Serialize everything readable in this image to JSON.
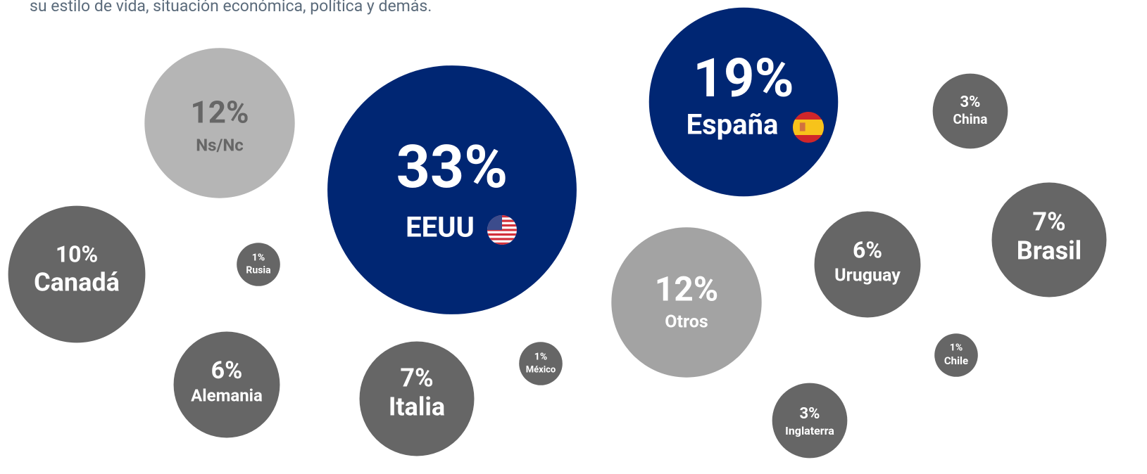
{
  "chart_data": {
    "type": "bubble",
    "subtitle": "su estilo de vida, situación económica, política y demás.",
    "categories": [
      "EEUU",
      "España",
      "Ns/Nc",
      "Otros",
      "Canadá",
      "Brasil",
      "Italia",
      "Alemania",
      "Uruguay",
      "China",
      "Inglaterra",
      "Rusia",
      "México",
      "Chile"
    ],
    "values": [
      33,
      19,
      12,
      12,
      10,
      7,
      7,
      6,
      6,
      3,
      3,
      1,
      1,
      1
    ],
    "value_labels": [
      "33%",
      "19%",
      "12%",
      "12%",
      "10%",
      "7%",
      "7%",
      "6%",
      "6%",
      "3%",
      "3%",
      "1%",
      "1%",
      "1%"
    ],
    "colors": [
      "#002673",
      "#002673",
      "#b5b5b5",
      "#a3a3a3",
      "#666666",
      "#666666",
      "#666666",
      "#666666",
      "#666666",
      "#666666",
      "#666666",
      "#666666",
      "#666666",
      "#666666"
    ]
  }
}
